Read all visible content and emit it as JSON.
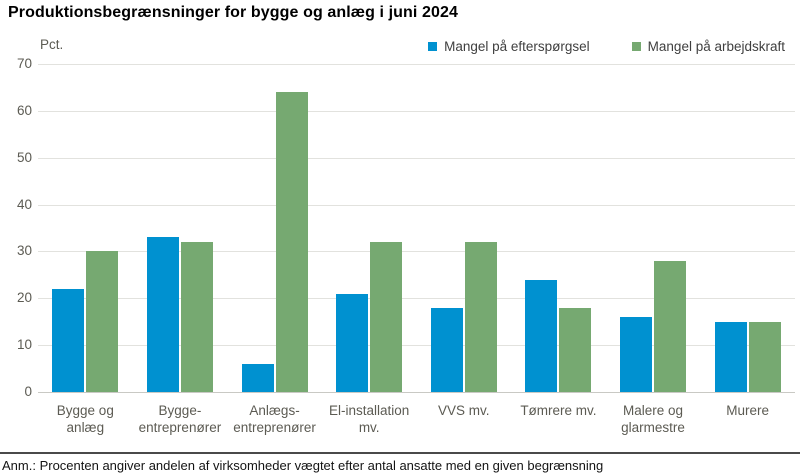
{
  "title": "Produktionsbegrænsninger for bygge og anlæg i juni 2024",
  "y_axis_unit": "Pct.",
  "footnote": "Anm.: Procenten angiver andelen af virksomheder vægtet efter antal ansatte med en given begrænsning",
  "colors": {
    "series_demand": "#0091d0",
    "series_labour": "#76a971",
    "axis_text": "#5c5b53",
    "gridline": "#e2e2de",
    "zero_line": "#c9c9c4",
    "footnote_divider": "#4a4a4a"
  },
  "chart_data": {
    "type": "bar",
    "title": "Produktionsbegrænsninger for bygge og anlæg i juni 2024",
    "xlabel": "",
    "ylabel": "Pct.",
    "ylim": [
      0,
      70
    ],
    "ytick_step": 10,
    "grid": true,
    "legend_position": "top-right",
    "categories": [
      "Bygge og anlæg",
      "Bygge-entreprenører",
      "Anlægs-entreprenører",
      "El-installation mv.",
      "VVS mv.",
      "Tømrere mv.",
      "Malere og glarmestre",
      "Murere"
    ],
    "category_label_lines": [
      [
        "Bygge og",
        "anlæg"
      ],
      [
        "Bygge-",
        "entreprenører"
      ],
      [
        "Anlægs-",
        "entreprenører"
      ],
      [
        "El-installation",
        "mv."
      ],
      [
        "VVS mv."
      ],
      [
        "Tømrere mv."
      ],
      [
        "Malere og",
        "glarmestre"
      ],
      [
        "Murere"
      ]
    ],
    "series": [
      {
        "name": "Mangel på efterspørgsel",
        "color": "#0091d0",
        "values": [
          22,
          33,
          6,
          21,
          18,
          24,
          16,
          15
        ]
      },
      {
        "name": "Mangel på arbejdskraft",
        "color": "#76a971",
        "values": [
          30,
          32,
          64,
          32,
          32,
          18,
          28,
          15
        ]
      }
    ]
  }
}
